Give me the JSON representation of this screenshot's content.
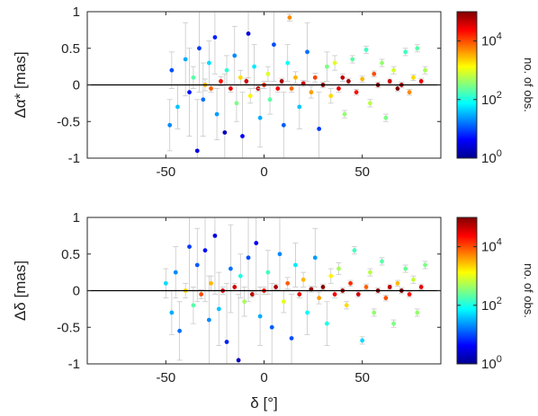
{
  "chart_data": [
    {
      "type": "scatter",
      "panel": "top",
      "title": "",
      "xlabel": "",
      "ylabel": "Δα* [mas]",
      "xlim": [
        -90,
        90
      ],
      "ylim": [
        -1,
        1
      ],
      "xticks": [
        "-50",
        "0",
        "50"
      ],
      "yticks": [
        "-1",
        "-0.5",
        "0",
        "0.5",
        "1"
      ],
      "error_bars": true,
      "reference_line_y": 0,
      "colorbar": {
        "label": "no. of obs.",
        "scale": "log",
        "range": [
          1,
          100000
        ],
        "colormap": "jet",
        "ticks": [
          {
            "base": "10",
            "exp": "0",
            "value": 1
          },
          {
            "base": "10",
            "exp": "2",
            "value": 100
          },
          {
            "base": "10",
            "exp": "4",
            "value": 10000
          }
        ]
      },
      "points": [
        {
          "x": -48,
          "y": -0.55,
          "err": 0.35,
          "n": 20
        },
        {
          "x": -47,
          "y": 0.2,
          "err": 0.25,
          "n": 10
        },
        {
          "x": -44,
          "y": -0.3,
          "err": 0.3,
          "n": 40
        },
        {
          "x": -40,
          "y": 0.35,
          "err": 0.5,
          "n": 30
        },
        {
          "x": -38,
          "y": -0.1,
          "err": 0.6,
          "n": 5
        },
        {
          "x": -36,
          "y": 0.1,
          "err": 0.15,
          "n": 200
        },
        {
          "x": -34,
          "y": -0.9,
          "err": 0.7,
          "n": 3
        },
        {
          "x": -33,
          "y": 0.5,
          "err": 0.6,
          "n": 8
        },
        {
          "x": -31,
          "y": -0.2,
          "err": 0.5,
          "n": 15
        },
        {
          "x": -30,
          "y": 0.0,
          "err": 0.08,
          "n": 3000
        },
        {
          "x": -28,
          "y": 0.3,
          "err": 0.3,
          "n": 50
        },
        {
          "x": -27,
          "y": -0.05,
          "err": 0.05,
          "n": 8000
        },
        {
          "x": -25,
          "y": 0.65,
          "err": 0.5,
          "n": 6
        },
        {
          "x": -24,
          "y": -0.4,
          "err": 0.35,
          "n": 25
        },
        {
          "x": -22,
          "y": 0.05,
          "err": 0.06,
          "n": 20000
        },
        {
          "x": -20,
          "y": -0.65,
          "err": 0.8,
          "n": 2
        },
        {
          "x": -19,
          "y": 0.2,
          "err": 0.2,
          "n": 120
        },
        {
          "x": -17,
          "y": -0.05,
          "err": 0.05,
          "n": 30000
        },
        {
          "x": -15,
          "y": 0.4,
          "err": 0.4,
          "n": 20
        },
        {
          "x": -14,
          "y": -0.25,
          "err": 0.25,
          "n": 300
        },
        {
          "x": -12,
          "y": 0.1,
          "err": 0.1,
          "n": 2000
        },
        {
          "x": -11,
          "y": -0.7,
          "err": 0.6,
          "n": 4
        },
        {
          "x": -9,
          "y": 0.05,
          "err": 0.04,
          "n": 40000
        },
        {
          "x": -8,
          "y": 0.7,
          "err": 0.6,
          "n": 3
        },
        {
          "x": -7,
          "y": -0.15,
          "err": 0.1,
          "n": 1500
        },
        {
          "x": -5,
          "y": 0.25,
          "err": 0.3,
          "n": 60
        },
        {
          "x": -3,
          "y": -0.05,
          "err": 0.04,
          "n": 50000
        },
        {
          "x": -2,
          "y": -0.45,
          "err": 0.4,
          "n": 30
        },
        {
          "x": 0,
          "y": 0.0,
          "err": 0.05,
          "n": 15000
        },
        {
          "x": 2,
          "y": 0.15,
          "err": 0.1,
          "n": 900
        },
        {
          "x": 3,
          "y": -0.2,
          "err": 0.2,
          "n": 200
        },
        {
          "x": 5,
          "y": 0.55,
          "err": 0.5,
          "n": 10
        },
        {
          "x": 7,
          "y": -0.05,
          "err": 0.05,
          "n": 25000
        },
        {
          "x": 9,
          "y": 0.05,
          "err": 0.04,
          "n": 60000
        },
        {
          "x": 10,
          "y": -0.55,
          "err": 0.45,
          "n": 12
        },
        {
          "x": 12,
          "y": 0.3,
          "err": 0.25,
          "n": 80
        },
        {
          "x": 13,
          "y": 0.92,
          "err": 0.05,
          "n": 5000
        },
        {
          "x": 14,
          "y": -0.05,
          "err": 0.05,
          "n": 7000
        },
        {
          "x": 16,
          "y": 0.1,
          "err": 0.08,
          "n": 3000
        },
        {
          "x": 18,
          "y": -0.3,
          "err": 0.3,
          "n": 40
        },
        {
          "x": 20,
          "y": 0.02,
          "err": 0.04,
          "n": 40000
        },
        {
          "x": 22,
          "y": 0.45,
          "err": 0.4,
          "n": 15
        },
        {
          "x": 24,
          "y": -0.1,
          "err": 0.08,
          "n": 4000
        },
        {
          "x": 26,
          "y": 0.1,
          "err": 0.06,
          "n": 12000
        },
        {
          "x": 28,
          "y": -0.6,
          "err": 0.5,
          "n": 8
        },
        {
          "x": 30,
          "y": 0.0,
          "err": 0.04,
          "n": 80000
        },
        {
          "x": 32,
          "y": 0.25,
          "err": 0.2,
          "n": 300
        },
        {
          "x": 34,
          "y": -0.15,
          "err": 0.1,
          "n": 2000
        },
        {
          "x": 36,
          "y": 0.3,
          "err": 0.1,
          "n": 1000
        },
        {
          "x": 38,
          "y": -0.05,
          "err": 0.05,
          "n": 30000
        },
        {
          "x": 40,
          "y": 0.1,
          "err": 0.05,
          "n": 50000
        },
        {
          "x": 41,
          "y": -0.4,
          "err": 0.05,
          "n": 400
        },
        {
          "x": 43,
          "y": 0.05,
          "err": 0.04,
          "n": 70000
        },
        {
          "x": 45,
          "y": 0.35,
          "err": 0.05,
          "n": 200
        },
        {
          "x": 47,
          "y": -0.1,
          "err": 0.04,
          "n": 20000
        },
        {
          "x": 50,
          "y": 0.08,
          "err": 0.04,
          "n": 3000
        },
        {
          "x": 52,
          "y": 0.48,
          "err": 0.05,
          "n": 150
        },
        {
          "x": 54,
          "y": -0.25,
          "err": 0.05,
          "n": 600
        },
        {
          "x": 56,
          "y": 0.15,
          "err": 0.04,
          "n": 10000
        },
        {
          "x": 58,
          "y": 0.0,
          "err": 0.04,
          "n": 90000
        },
        {
          "x": 60,
          "y": 0.3,
          "err": 0.05,
          "n": 400
        },
        {
          "x": 62,
          "y": -0.45,
          "err": 0.05,
          "n": 300
        },
        {
          "x": 64,
          "y": 0.05,
          "err": 0.03,
          "n": 40000
        },
        {
          "x": 66,
          "y": 0.2,
          "err": 0.05,
          "n": 800
        },
        {
          "x": 68,
          "y": -0.05,
          "err": 0.04,
          "n": 100000
        },
        {
          "x": 70,
          "y": 0.0,
          "err": 0.04,
          "n": 60000
        },
        {
          "x": 72,
          "y": 0.45,
          "err": 0.05,
          "n": 150
        },
        {
          "x": 74,
          "y": -0.1,
          "err": 0.04,
          "n": 5000
        },
        {
          "x": 76,
          "y": 0.1,
          "err": 0.04,
          "n": 2000
        },
        {
          "x": 78,
          "y": 0.5,
          "err": 0.05,
          "n": 200
        },
        {
          "x": 80,
          "y": 0.05,
          "err": 0.04,
          "n": 30000
        },
        {
          "x": 82,
          "y": 0.2,
          "err": 0.05,
          "n": 500
        }
      ]
    },
    {
      "type": "scatter",
      "panel": "bottom",
      "title": "",
      "xlabel": "δ [°]",
      "ylabel": "Δδ [mas]",
      "xlim": [
        -90,
        90
      ],
      "ylim": [
        -1,
        1
      ],
      "xticks": [
        "-50",
        "0",
        "50"
      ],
      "yticks": [
        "-1",
        "-0.5",
        "0",
        "0.5",
        "1"
      ],
      "error_bars": true,
      "reference_line_y": 0,
      "colorbar": {
        "label": "no. of obs.",
        "scale": "log",
        "range": [
          1,
          100000
        ],
        "colormap": "jet",
        "ticks": [
          {
            "base": "10",
            "exp": "0",
            "value": 1
          },
          {
            "base": "10",
            "exp": "2",
            "value": 100
          },
          {
            "base": "10",
            "exp": "4",
            "value": 10000
          }
        ]
      },
      "points": [
        {
          "x": -50,
          "y": 0.1,
          "err": 0.2,
          "n": 50
        },
        {
          "x": -47,
          "y": -0.3,
          "err": 0.3,
          "n": 30
        },
        {
          "x": -45,
          "y": 0.25,
          "err": 0.35,
          "n": 20
        },
        {
          "x": -43,
          "y": -0.55,
          "err": 0.4,
          "n": 15
        },
        {
          "x": -40,
          "y": 0.0,
          "err": 0.1,
          "n": 2000
        },
        {
          "x": -38,
          "y": 0.6,
          "err": 0.6,
          "n": 8
        },
        {
          "x": -36,
          "y": -0.2,
          "err": 0.25,
          "n": 200
        },
        {
          "x": -34,
          "y": 0.35,
          "err": 0.5,
          "n": 12
        },
        {
          "x": -32,
          "y": -0.05,
          "err": 0.06,
          "n": 10000
        },
        {
          "x": -30,
          "y": 0.55,
          "err": 0.7,
          "n": 5
        },
        {
          "x": -28,
          "y": -0.4,
          "err": 0.6,
          "n": 20
        },
        {
          "x": -27,
          "y": 0.1,
          "err": 0.1,
          "n": 3000
        },
        {
          "x": -25,
          "y": 0.75,
          "err": 0.8,
          "n": 3
        },
        {
          "x": -23,
          "y": -0.25,
          "err": 0.5,
          "n": 40
        },
        {
          "x": -21,
          "y": 0.0,
          "err": 0.05,
          "n": 30000
        },
        {
          "x": -19,
          "y": -0.7,
          "err": 0.8,
          "n": 6
        },
        {
          "x": -17,
          "y": 0.3,
          "err": 0.6,
          "n": 15
        },
        {
          "x": -15,
          "y": 0.05,
          "err": 0.05,
          "n": 40000
        },
        {
          "x": -13,
          "y": -0.95,
          "err": 0.9,
          "n": 2
        },
        {
          "x": -12,
          "y": 0.2,
          "err": 0.3,
          "n": 100
        },
        {
          "x": -10,
          "y": -0.15,
          "err": 0.2,
          "n": 500
        },
        {
          "x": -8,
          "y": 0.45,
          "err": 0.6,
          "n": 10
        },
        {
          "x": -6,
          "y": -0.05,
          "err": 0.04,
          "n": 50000
        },
        {
          "x": -4,
          "y": 0.65,
          "err": 0.7,
          "n": 4
        },
        {
          "x": -2,
          "y": -0.35,
          "err": 0.4,
          "n": 30
        },
        {
          "x": 0,
          "y": 0.0,
          "err": 0.05,
          "n": 20000
        },
        {
          "x": 2,
          "y": 0.25,
          "err": 0.3,
          "n": 150
        },
        {
          "x": 4,
          "y": -0.5,
          "err": 0.6,
          "n": 12
        },
        {
          "x": 6,
          "y": 0.05,
          "err": 0.04,
          "n": 60000
        },
        {
          "x": 8,
          "y": 0.5,
          "err": 0.5,
          "n": 20
        },
        {
          "x": 10,
          "y": -0.15,
          "err": 0.15,
          "n": 1000
        },
        {
          "x": 12,
          "y": 0.1,
          "err": 0.08,
          "n": 8000
        },
        {
          "x": 14,
          "y": -0.65,
          "err": 0.6,
          "n": 10
        },
        {
          "x": 16,
          "y": 0.35,
          "err": 0.3,
          "n": 60
        },
        {
          "x": 18,
          "y": -0.05,
          "err": 0.05,
          "n": 30000
        },
        {
          "x": 20,
          "y": 0.15,
          "err": 0.1,
          "n": 3000
        },
        {
          "x": 22,
          "y": -0.3,
          "err": 0.3,
          "n": 80
        },
        {
          "x": 24,
          "y": 0.02,
          "err": 0.04,
          "n": 70000
        },
        {
          "x": 26,
          "y": 0.45,
          "err": 0.4,
          "n": 25
        },
        {
          "x": 28,
          "y": -0.1,
          "err": 0.08,
          "n": 4000
        },
        {
          "x": 30,
          "y": 0.05,
          "err": 0.04,
          "n": 90000
        },
        {
          "x": 32,
          "y": -0.45,
          "err": 0.3,
          "n": 100
        },
        {
          "x": 34,
          "y": 0.2,
          "err": 0.1,
          "n": 1500
        },
        {
          "x": 36,
          "y": -0.05,
          "err": 0.05,
          "n": 25000
        },
        {
          "x": 38,
          "y": 0.3,
          "err": 0.08,
          "n": 500
        },
        {
          "x": 40,
          "y": 0.0,
          "err": 0.04,
          "n": 60000
        },
        {
          "x": 42,
          "y": -0.2,
          "err": 0.05,
          "n": 2000
        },
        {
          "x": 44,
          "y": 0.1,
          "err": 0.04,
          "n": 15000
        },
        {
          "x": 46,
          "y": 0.55,
          "err": 0.05,
          "n": 150
        },
        {
          "x": 48,
          "y": -0.05,
          "err": 0.04,
          "n": 40000
        },
        {
          "x": 50,
          "y": -0.68,
          "err": 0.05,
          "n": 50
        },
        {
          "x": 52,
          "y": 0.05,
          "err": 0.04,
          "n": 8000
        },
        {
          "x": 54,
          "y": 0.25,
          "err": 0.05,
          "n": 600
        },
        {
          "x": 56,
          "y": -0.3,
          "err": 0.05,
          "n": 400
        },
        {
          "x": 58,
          "y": 0.0,
          "err": 0.04,
          "n": 80000
        },
        {
          "x": 60,
          "y": 0.4,
          "err": 0.05,
          "n": 200
        },
        {
          "x": 62,
          "y": -0.1,
          "err": 0.04,
          "n": 10000
        },
        {
          "x": 64,
          "y": 0.05,
          "err": 0.03,
          "n": 50000
        },
        {
          "x": 66,
          "y": -0.45,
          "err": 0.05,
          "n": 300
        },
        {
          "x": 68,
          "y": 0.1,
          "err": 0.04,
          "n": 3000
        },
        {
          "x": 70,
          "y": 0.0,
          "err": 0.04,
          "n": 100000
        },
        {
          "x": 72,
          "y": 0.3,
          "err": 0.05,
          "n": 250
        },
        {
          "x": 74,
          "y": -0.05,
          "err": 0.04,
          "n": 20000
        },
        {
          "x": 76,
          "y": 0.15,
          "err": 0.05,
          "n": 700
        },
        {
          "x": 78,
          "y": -0.3,
          "err": 0.05,
          "n": 400
        },
        {
          "x": 80,
          "y": 0.05,
          "err": 0.04,
          "n": 30000
        },
        {
          "x": 82,
          "y": 0.35,
          "err": 0.05,
          "n": 300
        }
      ]
    }
  ]
}
